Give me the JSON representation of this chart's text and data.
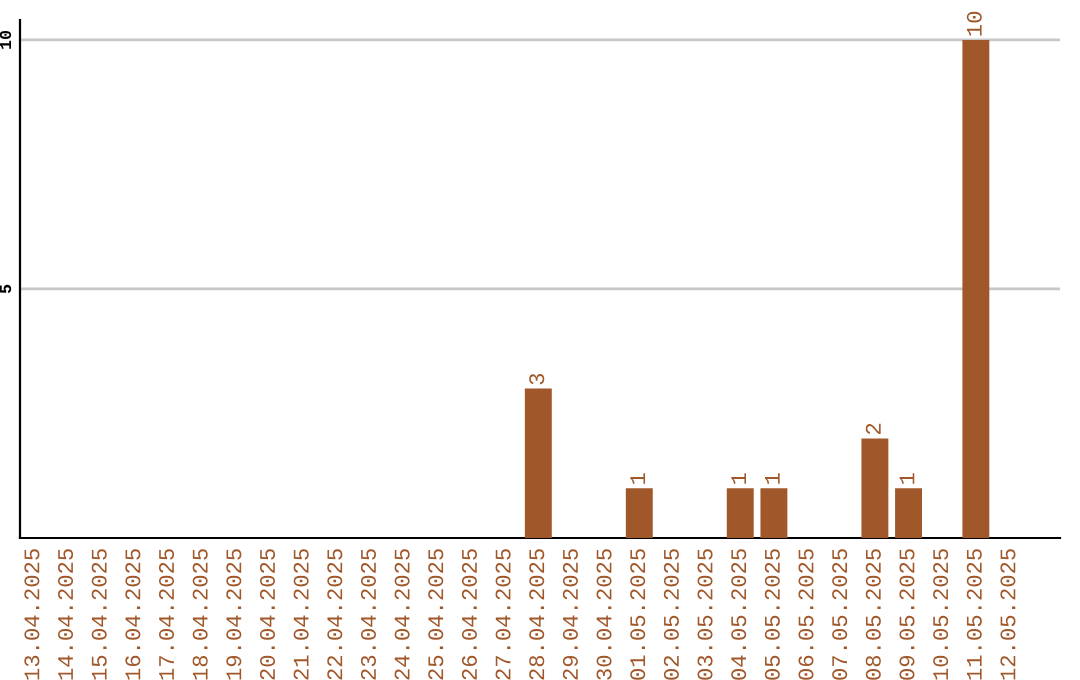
{
  "chart_data": {
    "type": "bar",
    "categories": [
      "13.04.2025",
      "14.04.2025",
      "15.04.2025",
      "16.04.2025",
      "17.04.2025",
      "18.04.2025",
      "19.04.2025",
      "20.04.2025",
      "21.04.2025",
      "22.04.2025",
      "23.04.2025",
      "24.04.2025",
      "25.04.2025",
      "26.04.2025",
      "27.04.2025",
      "28.04.2025",
      "29.04.2025",
      "30.04.2025",
      "01.05.2025",
      "02.05.2025",
      "03.05.2025",
      "04.05.2025",
      "05.05.2025",
      "06.05.2025",
      "07.05.2025",
      "08.05.2025",
      "09.05.2025",
      "10.05.2025",
      "11.05.2025",
      "12.05.2025"
    ],
    "values": [
      0,
      0,
      0,
      0,
      0,
      0,
      0,
      0,
      0,
      0,
      0,
      0,
      0,
      0,
      0,
      3,
      0,
      0,
      1,
      0,
      0,
      1,
      1,
      0,
      0,
      2,
      1,
      0,
      10,
      0
    ],
    "value_labels": [
      null,
      null,
      null,
      null,
      null,
      null,
      null,
      null,
      null,
      null,
      null,
      null,
      null,
      null,
      null,
      "3",
      null,
      null,
      "1",
      null,
      null,
      "1",
      "1",
      null,
      null,
      "2",
      "1",
      null,
      "10",
      null
    ],
    "color": "#a0582a",
    "ylim": [
      0,
      10.4
    ],
    "yticks": [
      5,
      10
    ],
    "grid": "y"
  }
}
